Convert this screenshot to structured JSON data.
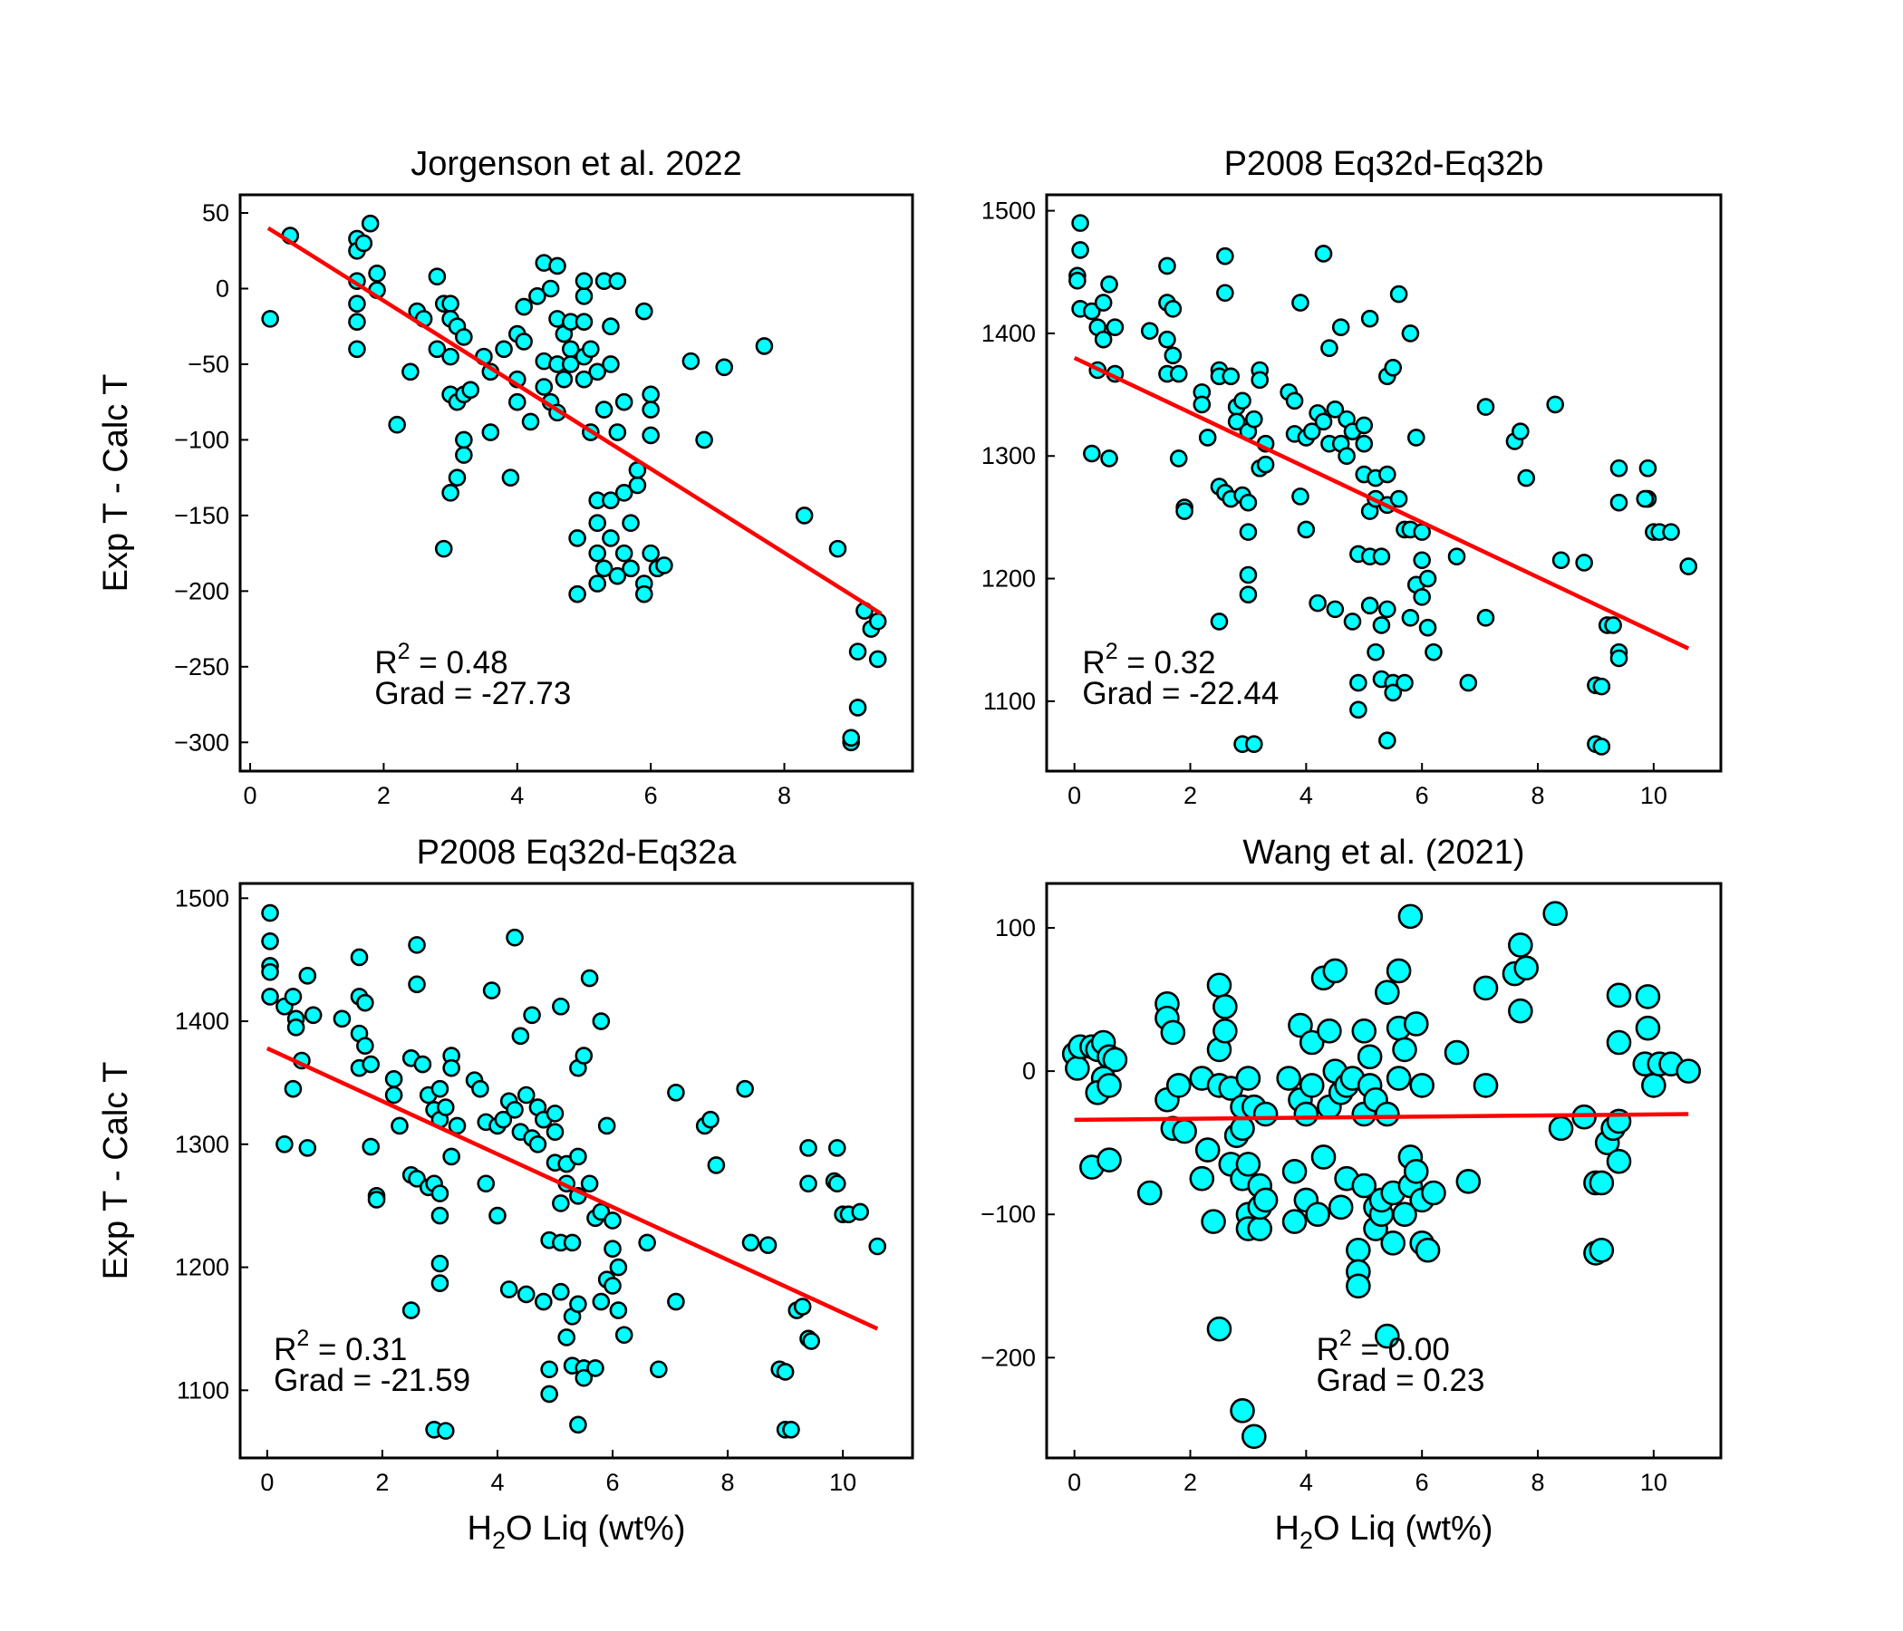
{
  "chart_data": [
    {
      "type": "scatter",
      "title": "Jorgenson et al. 2022",
      "ylabel": "Exp T - Calc T",
      "color": "#00ffff",
      "edgecolor": "#000000",
      "xlim": [
        -0.15,
        9.92
      ],
      "ylim": [
        -319,
        62
      ],
      "xticks": [
        0,
        2,
        4,
        6,
        8
      ],
      "yticks": [
        50,
        0,
        {
          "value": -50,
          "label": "−50"
        },
        {
          "value": -100,
          "label": "−100"
        },
        {
          "value": -150,
          "label": "−150"
        },
        {
          "value": -200,
          "label": "−200"
        },
        {
          "value": -250,
          "label": "−250"
        },
        {
          "value": -300,
          "label": "−300"
        }
      ],
      "x": [
        0.3,
        0.6,
        1.6,
        1.6,
        1.7,
        1.8,
        1.6,
        1.6,
        1.6,
        1.6,
        1.9,
        1.9,
        2.2,
        2.4,
        2.5,
        2.6,
        2.8,
        2.8,
        2.9,
        3.0,
        3.0,
        3.1,
        3.0,
        3.0,
        3.1,
        3.2,
        3.3,
        3.2,
        3.0,
        3.1,
        3.2,
        3.2,
        2.9,
        3.5,
        3.6,
        3.6,
        3.8,
        3.9,
        4.0,
        4.0,
        4.0,
        4.1,
        4.1,
        4.2,
        4.3,
        4.4,
        4.4,
        4.4,
        4.5,
        4.5,
        4.6,
        4.6,
        4.6,
        4.6,
        4.7,
        4.7,
        4.8,
        4.8,
        4.8,
        4.9,
        4.9,
        5.0,
        5.0,
        5.0,
        5.0,
        5.0,
        5.1,
        5.1,
        5.2,
        5.2,
        5.2,
        5.2,
        5.2,
        5.3,
        5.3,
        5.3,
        5.4,
        5.4,
        5.4,
        5.4,
        5.5,
        5.5,
        5.5,
        5.6,
        5.6,
        5.6,
        5.7,
        5.7,
        5.8,
        5.8,
        5.9,
        5.9,
        5.9,
        6.0,
        6.0,
        6.0,
        6.0,
        6.1,
        6.2,
        6.6,
        6.8,
        7.1,
        7.7,
        8.3,
        8.8,
        9.0,
        9.0,
        9.1,
        9.1,
        9.2,
        9.3,
        9.4,
        9.4
      ],
      "values": [
        -20,
        35,
        33,
        25,
        30,
        43,
        5,
        -10,
        -22,
        -40,
        10,
        -1,
        -90,
        -55,
        -15,
        -20,
        -40,
        8,
        -10,
        -10,
        -20,
        -25,
        -45,
        -70,
        -75,
        -70,
        -67,
        -32,
        -135,
        -125,
        -110,
        -100,
        -172,
        -45,
        -55,
        -95,
        -40,
        -125,
        -60,
        -75,
        -30,
        -35,
        -12,
        -88,
        -5,
        17,
        -48,
        -65,
        -75,
        0,
        15,
        -20,
        -50,
        -82,
        -30,
        -60,
        -40,
        -22,
        -50,
        -165,
        -202,
        -45,
        -60,
        -22,
        -5,
        5,
        -95,
        -40,
        -55,
        -140,
        -155,
        -175,
        -195,
        5,
        -80,
        -185,
        -165,
        -25,
        -50,
        -140,
        -95,
        -190,
        5,
        -75,
        -135,
        -175,
        -155,
        -185,
        -130,
        -120,
        -15,
        -195,
        -202,
        -70,
        -80,
        -97,
        -175,
        -185,
        -183,
        -48,
        -100,
        -52,
        -38,
        -150,
        -172,
        -300,
        -297,
        -277,
        -240,
        -213,
        -225,
        -220,
        -245
      ],
      "fit": {
        "color": "#ff0000",
        "x": [
          0.27,
          9.45
        ],
        "values": [
          40,
          -215
        ]
      },
      "annotation": {
        "r2": [
          "R",
          "2",
          " = 0.48"
        ],
        "grad": "Grad = -27.73"
      }
    },
    {
      "type": "scatter",
      "title": "P2008 Eq32d-Eq32b",
      "color": "#00ffff",
      "edgecolor": "#000000",
      "xlim": [
        -0.48,
        11.16
      ],
      "ylim": [
        1043,
        1513
      ],
      "xticks": [
        0,
        2,
        4,
        6,
        8,
        10
      ],
      "yticks": [
        1100,
        1200,
        1300,
        1400,
        1500
      ],
      "x": [
        0.1,
        0.1,
        0.05,
        0.05,
        0.1,
        0.3,
        0.5,
        0.4,
        0.5,
        0.6,
        0.7,
        0.4,
        0.7,
        0.3,
        0.6,
        1.3,
        1.6,
        1.6,
        1.7,
        1.6,
        1.7,
        1.6,
        1.8,
        1.8,
        1.9,
        1.9,
        2.2,
        2.2,
        2.3,
        2.5,
        2.5,
        2.6,
        2.6,
        2.7,
        2.5,
        2.6,
        2.7,
        2.8,
        2.8,
        2.9,
        2.9,
        3.0,
        3.0,
        3.0,
        3.0,
        3.0,
        3.1,
        3.2,
        3.2,
        3.2,
        3.3,
        3.3,
        2.5,
        2.9,
        3.1,
        3.7,
        3.8,
        3.8,
        3.9,
        3.9,
        4.0,
        4.0,
        4.1,
        4.2,
        4.2,
        4.3,
        4.3,
        4.4,
        4.4,
        4.5,
        4.5,
        4.6,
        4.6,
        4.7,
        4.7,
        4.8,
        4.8,
        4.9,
        4.9,
        4.9,
        5.0,
        5.0,
        5.0,
        5.1,
        5.1,
        5.1,
        5.1,
        5.2,
        5.2,
        5.2,
        5.3,
        5.3,
        5.3,
        5.4,
        5.4,
        5.4,
        5.4,
        5.4,
        5.5,
        5.5,
        5.5,
        5.6,
        5.6,
        5.7,
        5.7,
        5.8,
        5.8,
        5.8,
        5.9,
        5.9,
        6.0,
        6.0,
        6.0,
        6.1,
        6.1,
        6.2,
        6.6,
        6.8,
        7.1,
        7.1,
        7.6,
        7.7,
        7.8,
        8.3,
        8.4,
        8.8,
        9.0,
        9.0,
        9.1,
        9.1,
        9.2,
        9.3,
        9.4,
        9.4,
        9.4,
        9.4,
        9.9,
        9.9,
        9.85,
        10.0,
        10.1,
        10.3,
        10.6
      ],
      "values": [
        1490,
        1468,
        1447,
        1443,
        1420,
        1418,
        1425,
        1405,
        1395,
        1440,
        1405,
        1370,
        1367,
        1302,
        1298,
        1402,
        1455,
        1425,
        1420,
        1395,
        1382,
        1367,
        1367,
        1298,
        1258,
        1255,
        1352,
        1342,
        1315,
        1370,
        1365,
        1463,
        1433,
        1365,
        1275,
        1270,
        1265,
        1340,
        1328,
        1345,
        1268,
        1262,
        1238,
        1203,
        1187,
        1320,
        1330,
        1370,
        1362,
        1290,
        1310,
        1293,
        1165,
        1065,
        1065,
        1352,
        1345,
        1318,
        1425,
        1267,
        1240,
        1315,
        1320,
        1335,
        1180,
        1465,
        1328,
        1388,
        1310,
        1338,
        1175,
        1405,
        1310,
        1330,
        1300,
        1320,
        1165,
        1220,
        1115,
        1093,
        1325,
        1310,
        1285,
        1412,
        1255,
        1218,
        1178,
        1282,
        1265,
        1140,
        1218,
        1162,
        1118,
        1365,
        1285,
        1260,
        1175,
        1068,
        1372,
        1115,
        1107,
        1432,
        1265,
        1240,
        1115,
        1400,
        1240,
        1168,
        1315,
        1195,
        1238,
        1215,
        1185,
        1200,
        1160,
        1140,
        1218,
        1115,
        1340,
        1168,
        1312,
        1320,
        1282,
        1342,
        1215,
        1213,
        1065,
        1113,
        1112,
        1063,
        1162,
        1162,
        1290,
        1262,
        1140,
        1135,
        1290,
        1265,
        1265,
        1238,
        1238,
        1238,
        1210
      ],
      "fit": {
        "color": "#ff0000",
        "x": [
          0,
          10.6
        ],
        "values": [
          1380,
          1143
        ]
      },
      "annotation": {
        "r2": [
          "R",
          "2",
          " = 0.32"
        ],
        "grad": "Grad = -22.44"
      }
    },
    {
      "type": "scatter",
      "title": "P2008 Eq32d-Eq32a",
      "ylabel": "Exp T - Calc T",
      "xlabel": [
        "H",
        "2",
        "O Liq (wt%)"
      ],
      "color": "#00ffff",
      "edgecolor": "#000000",
      "xlim": [
        -0.47,
        11.21
      ],
      "ylim": [
        1045,
        1512
      ],
      "xticks": [
        0,
        2,
        4,
        6,
        8,
        10
      ],
      "yticks": [
        1100,
        1200,
        1300,
        1400,
        1500
      ],
      "x": [
        0.05,
        0.05,
        0.05,
        0.05,
        0.05,
        0.3,
        0.45,
        0.5,
        0.5,
        0.7,
        0.8,
        0.6,
        0.45,
        0.3,
        0.7,
        1.3,
        1.6,
        1.6,
        1.7,
        1.6,
        1.7,
        1.6,
        1.8,
        1.8,
        1.9,
        1.9,
        2.2,
        2.2,
        2.3,
        2.5,
        2.6,
        2.6,
        2.7,
        2.5,
        2.6,
        2.8,
        2.8,
        2.9,
        3.0,
        2.9,
        3.0,
        3.0,
        3.0,
        3.0,
        3.0,
        3.1,
        3.2,
        3.2,
        3.2,
        3.3,
        2.5,
        2.9,
        3.1,
        3.6,
        3.7,
        3.8,
        3.9,
        3.8,
        4.0,
        4.0,
        4.1,
        4.2,
        4.2,
        4.3,
        4.3,
        4.4,
        4.4,
        4.5,
        4.5,
        4.6,
        4.6,
        4.7,
        4.7,
        4.8,
        4.8,
        4.9,
        4.9,
        4.9,
        5.0,
        5.0,
        5.0,
        5.1,
        5.1,
        5.1,
        5.1,
        5.2,
        5.2,
        5.2,
        5.3,
        5.3,
        5.3,
        5.4,
        5.4,
        5.4,
        5.4,
        5.4,
        5.5,
        5.5,
        5.5,
        5.6,
        5.6,
        5.7,
        5.7,
        5.8,
        5.8,
        5.8,
        5.9,
        5.9,
        6.0,
        6.0,
        6.0,
        6.1,
        6.1,
        6.2,
        6.6,
        6.8,
        7.1,
        7.1,
        7.6,
        7.7,
        7.8,
        8.3,
        8.4,
        8.7,
        9.0,
        8.9,
        9.0,
        9.1,
        9.2,
        9.3,
        9.4,
        9.4,
        9.4,
        9.45,
        9.9,
        9.85,
        9.9,
        10.0,
        10.1,
        10.3,
        10.6
      ],
      "values": [
        1488,
        1465,
        1445,
        1440,
        1420,
        1412,
        1420,
        1402,
        1395,
        1437,
        1405,
        1368,
        1345,
        1300,
        1297,
        1402,
        1452,
        1420,
        1415,
        1390,
        1380,
        1362,
        1365,
        1298,
        1258,
        1255,
        1353,
        1340,
        1315,
        1370,
        1462,
        1430,
        1365,
        1275,
        1272,
        1265,
        1340,
        1328,
        1345,
        1268,
        1260,
        1242,
        1203,
        1187,
        1320,
        1330,
        1372,
        1362,
        1290,
        1315,
        1165,
        1068,
        1067,
        1352,
        1345,
        1318,
        1425,
        1268,
        1242,
        1315,
        1320,
        1335,
        1182,
        1468,
        1328,
        1388,
        1310,
        1340,
        1178,
        1405,
        1305,
        1330,
        1300,
        1320,
        1172,
        1222,
        1117,
        1097,
        1325,
        1310,
        1285,
        1412,
        1252,
        1220,
        1180,
        1284,
        1268,
        1143,
        1220,
        1160,
        1120,
        1362,
        1290,
        1258,
        1170,
        1072,
        1372,
        1118,
        1110,
        1435,
        1268,
        1240,
        1118,
        1400,
        1245,
        1172,
        1315,
        1190,
        1238,
        1215,
        1185,
        1200,
        1165,
        1145,
        1220,
        1117,
        1342,
        1172,
        1315,
        1320,
        1283,
        1345,
        1220,
        1218,
        1068,
        1117,
        1115,
        1068,
        1165,
        1168,
        1297,
        1268,
        1142,
        1140,
        1297,
        1270,
        1268,
        1243,
        1243,
        1245,
        1217
      ],
      "fit": {
        "color": "#ff0000",
        "x": [
          0,
          10.6
        ],
        "values": [
          1378,
          1150
        ]
      },
      "annotation": {
        "r2": [
          "R",
          "2",
          " = 0.31"
        ],
        "grad": "Grad = -21.59"
      }
    },
    {
      "type": "scatter",
      "title": "Wang et al. (2021)",
      "xlabel": [
        "H",
        "2",
        "O Liq (wt%)"
      ],
      "color": "#00ffff",
      "edgecolor": "#000000",
      "xlim": [
        -0.48,
        11.16
      ],
      "ylim": [
        -270,
        131
      ],
      "xticks": [
        0,
        2,
        4,
        6,
        8,
        10
      ],
      "yticks": [
        100,
        0,
        {
          "value": -100,
          "label": "−100"
        },
        {
          "value": -200,
          "label": "−200"
        }
      ],
      "x": [
        0,
        0.05,
        0.1,
        0.3,
        0.4,
        0.5,
        0.6,
        0.7,
        0.5,
        0.4,
        0.6,
        0.3,
        0.6,
        1.3,
        1.6,
        1.6,
        1.7,
        1.6,
        1.7,
        1.8,
        1.9,
        2.2,
        2.2,
        2.3,
        2.4,
        2.5,
        2.5,
        2.6,
        2.6,
        2.5,
        2.5,
        2.7,
        2.7,
        2.8,
        2.9,
        2.9,
        2.9,
        2.9,
        3.0,
        3.0,
        3.0,
        3.0,
        3.1,
        3.1,
        3.2,
        3.2,
        3.2,
        3.3,
        3.3,
        3.7,
        3.8,
        3.8,
        3.9,
        3.9,
        4.0,
        4.0,
        4.1,
        4.1,
        4.2,
        4.3,
        4.3,
        4.4,
        4.4,
        4.5,
        4.5,
        4.6,
        4.6,
        4.7,
        4.7,
        4.8,
        4.9,
        4.9,
        4.9,
        5.0,
        5.0,
        5.0,
        5.1,
        5.1,
        5.2,
        5.2,
        5.2,
        5.3,
        5.3,
        5.4,
        5.4,
        5.4,
        5.5,
        5.5,
        5.6,
        5.6,
        5.6,
        5.7,
        5.7,
        5.8,
        5.8,
        5.8,
        5.9,
        5.9,
        6.0,
        6.0,
        6.0,
        6.1,
        6.2,
        6.6,
        6.8,
        7.1,
        7.1,
        7.6,
        7.7,
        7.7,
        7.8,
        8.3,
        8.4,
        8.8,
        9.0,
        9.0,
        9.1,
        9.1,
        9.2,
        9.3,
        9.4,
        9.4,
        9.4,
        9.4,
        9.9,
        9.9,
        9.85,
        10.0,
        10.1,
        10.3,
        10.6
      ],
      "values": [
        12,
        2,
        17,
        17,
        15,
        20,
        10,
        8,
        -5,
        -15,
        -10,
        -67,
        -62,
        -85,
        47,
        37,
        27,
        -20,
        -40,
        -10,
        -42,
        -5,
        -75,
        -55,
        -105,
        60,
        15,
        45,
        28,
        -10,
        -180,
        -12,
        -65,
        -45,
        -40,
        -25,
        -75,
        -237,
        -100,
        -110,
        -65,
        -5,
        -255,
        -25,
        -80,
        -110,
        -95,
        -90,
        -30,
        -5,
        -105,
        -70,
        -20,
        32,
        -30,
        -90,
        20,
        -10,
        -100,
        65,
        -60,
        28,
        -25,
        70,
        0,
        -15,
        -95,
        -10,
        -75,
        -5,
        -125,
        -140,
        -150,
        -80,
        -30,
        28,
        10,
        -10,
        -20,
        -95,
        -110,
        -100,
        -90,
        55,
        -30,
        -185,
        -85,
        -120,
        70,
        30,
        -5,
        15,
        -100,
        -60,
        -80,
        108,
        33,
        -70,
        -10,
        -90,
        -120,
        -125,
        -85,
        13,
        -77,
        -10,
        58,
        68,
        88,
        42,
        72,
        110,
        -40,
        -32,
        -78,
        -127,
        -78,
        -125,
        -50,
        -40,
        -35,
        53,
        20,
        -63,
        52,
        30,
        5,
        -10,
        5,
        5,
        0
      ],
      "fit": {
        "color": "#ff0000",
        "x": [
          0,
          10.6
        ],
        "values": [
          -34,
          -30
        ]
      },
      "annotation": {
        "r2": [
          "R",
          "2",
          " = 0.00"
        ],
        "grad": "Grad = 0.23"
      }
    }
  ]
}
